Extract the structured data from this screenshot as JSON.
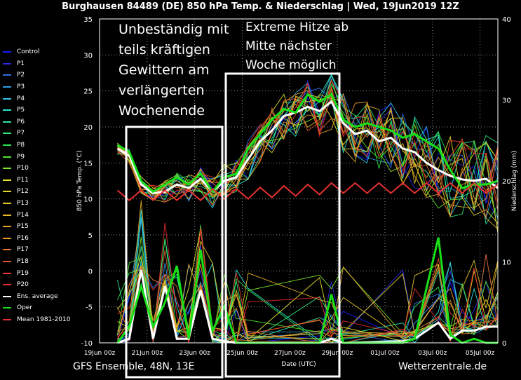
{
  "title": "Burghausen 84489 (DE)  850 hPa Temp. & Niederschlag | Wed, 19Jun2019 12Z",
  "footer_left": "GFS Ensemble, 48N, 13E",
  "footer_right": "Wetterzentrale.de",
  "annotations": {
    "left_lines": [
      "Unbeständig mit",
      "teils kräftigen",
      "Gewittern am",
      "verlängerten",
      "Wochenende"
    ],
    "right_lines": [
      "Extreme Hitze ab",
      "Mitte nächster",
      "Woche möglich"
    ]
  },
  "legend": [
    {
      "label": "Control",
      "color": "#1a1aff"
    },
    {
      "label": "P1",
      "color": "#2a2ae6"
    },
    {
      "label": "P2",
      "color": "#2a6ee6"
    },
    {
      "label": "P3",
      "color": "#2a9ee6"
    },
    {
      "label": "P4",
      "color": "#2ac6e6"
    },
    {
      "label": "P5",
      "color": "#2ae6d6"
    },
    {
      "label": "P6",
      "color": "#2ae6a6"
    },
    {
      "label": "P7",
      "color": "#2ae67e"
    },
    {
      "label": "P8",
      "color": "#2ae64e"
    },
    {
      "label": "P9",
      "color": "#4ee62a"
    },
    {
      "label": "P10",
      "color": "#7ee62a"
    },
    {
      "label": "P11",
      "color": "#e6e62a"
    },
    {
      "label": "P12",
      "color": "#e6d62a"
    },
    {
      "label": "P13",
      "color": "#e6c62a"
    },
    {
      "label": "P14",
      "color": "#e6b62a"
    },
    {
      "label": "P15",
      "color": "#e6a62a"
    },
    {
      "label": "P16",
      "color": "#e6962a"
    },
    {
      "label": "P17",
      "color": "#e6762a"
    },
    {
      "label": "P18",
      "color": "#e6562a"
    },
    {
      "label": "P19",
      "color": "#e63a2a"
    },
    {
      "label": "P20",
      "color": "#e62a2a"
    },
    {
      "label": "Ens. average",
      "color": "#ffffff"
    },
    {
      "label": "Oper",
      "color": "#18e018"
    },
    {
      "label": "Mean 1981-2010",
      "color": "#e83030"
    }
  ],
  "chart_data": {
    "type": "line",
    "title": "Burghausen 84489 (DE)  850 hPa Temp. & Niederschlag | Wed, 19Jun2019 12Z",
    "xlabel": "Date (UTC)",
    "ylabel": "850 hPa Temp. (°C)",
    "ylabel_right": "Niederschlag (mm)",
    "x_ticks": [
      "19Jun 00z",
      "21Jun 00z",
      "23Jun 00z",
      "25Jun 00z",
      "27Jun 00z",
      "29Jun 00z",
      "01Jul 00z",
      "03Jul 00z",
      "05Jul 00z"
    ],
    "x_tick_days": [
      0,
      2,
      4,
      6,
      8,
      10,
      12,
      14,
      16
    ],
    "xlim_days": [
      0,
      16.75
    ],
    "ylim": [
      -10,
      35
    ],
    "y_ticks": [
      -10,
      -5,
      0,
      5,
      10,
      15,
      20,
      25,
      30,
      35
    ],
    "ylim_right": [
      0,
      40
    ],
    "y_ticks_right": [
      0,
      10,
      20,
      30,
      40
    ],
    "grid": true,
    "temperature_series": [
      {
        "name": "Ens. average",
        "color": "#ffffff",
        "x": [
          0.75,
          1.25,
          1.75,
          2.25,
          2.75,
          3.25,
          3.75,
          4.25,
          4.75,
          5.25,
          5.75,
          6.25,
          6.75,
          7.25,
          7.75,
          8.25,
          8.75,
          9.25,
          9.75,
          10.25,
          10.75,
          11.25,
          11.75,
          12.25,
          12.75,
          13.25,
          13.75,
          14.25,
          14.75,
          15.25,
          15.75,
          16.25,
          16.75
        ],
        "y": [
          17,
          16,
          12,
          10.8,
          11,
          12,
          11.5,
          12.8,
          11,
          12.5,
          13,
          15.5,
          18,
          19.5,
          21.5,
          22,
          22.8,
          22.2,
          23.5,
          20.5,
          19,
          19.5,
          18,
          18.5,
          17,
          16.5,
          15,
          14,
          13.2,
          12.7,
          12.5,
          12.8,
          11.5
        ]
      },
      {
        "name": "Oper",
        "color": "#18e018",
        "x": [
          0.75,
          1.25,
          1.75,
          2.25,
          2.75,
          3.25,
          3.75,
          4.25,
          4.75,
          5.25,
          5.75,
          6.25,
          6.75,
          7.25,
          7.75,
          8.25,
          8.75,
          9.25,
          9.75,
          10.25,
          10.75,
          11.25,
          11.75,
          12.25,
          12.75,
          13.25,
          13.75,
          14.25,
          14.75,
          15.25,
          15.75,
          16.25,
          16.75
        ],
        "y": [
          17.5,
          16.5,
          12.5,
          11,
          12,
          13,
          12,
          13.5,
          11,
          13,
          13.5,
          17,
          19,
          21,
          22.5,
          22,
          24.5,
          23.5,
          24.5,
          21,
          20,
          20.5,
          20,
          19.5,
          18.5,
          19,
          18,
          17,
          14,
          11.5,
          12,
          12,
          12.5
        ]
      },
      {
        "name": "Mean 1981-2010",
        "color": "#e83030",
        "x": [
          0.75,
          1.25,
          1.75,
          2.25,
          2.75,
          3.25,
          3.75,
          4.25,
          4.75,
          5.25,
          5.75,
          6.25,
          6.75,
          7.25,
          7.75,
          8.25,
          8.75,
          9.25,
          9.75,
          10.25,
          10.75,
          11.25,
          11.75,
          12.25,
          12.75,
          13.25,
          13.75,
          14.25,
          14.75,
          15.25,
          15.75,
          16.25,
          16.75
        ],
        "y": [
          11.2,
          9.8,
          11.2,
          9.8,
          11.2,
          9.8,
          11.2,
          9.8,
          11.4,
          10,
          11.4,
          10,
          11.6,
          10.2,
          11.8,
          10.4,
          12,
          10.6,
          12.2,
          10.8,
          12.2,
          10.8,
          12.2,
          10.8,
          12.2,
          10.8,
          12.2,
          10.8,
          12.2,
          10.8,
          12.2,
          10.8,
          12
        ]
      }
    ],
    "precip_series": [
      {
        "name": "Ens. average",
        "color": "#ffffff",
        "x": [
          0.75,
          1.25,
          1.75,
          2.25,
          2.75,
          3.25,
          3.75,
          4.25,
          4.75,
          5.25,
          5.75,
          6.25,
          9.25,
          9.75,
          10.25,
          12.75,
          13.25,
          14.25,
          14.75,
          15.25,
          15.75,
          16.25,
          16.75
        ],
        "y": [
          0,
          0.5,
          9,
          0.5,
          7,
          0.5,
          0.5,
          6.5,
          0.5,
          0.2,
          0,
          0,
          0,
          0.5,
          0,
          0.2,
          0.5,
          2.5,
          0.5,
          1.5,
          1.5,
          2,
          2
        ]
      },
      {
        "name": "Oper",
        "color": "#18e018",
        "x": [
          0.75,
          1.25,
          1.75,
          2.25,
          2.75,
          3.25,
          3.75,
          4.25,
          4.75,
          5.25,
          5.75,
          6.25,
          9.25,
          9.75,
          10.25,
          12.75,
          13.25,
          14.25,
          14.75,
          15.25,
          15.75,
          16.25,
          16.75
        ],
        "y": [
          0,
          2,
          7,
          2,
          5,
          9.5,
          0.5,
          11.5,
          1.5,
          4.5,
          0,
          0,
          0,
          6,
          0,
          0,
          0.5,
          13,
          1,
          0,
          0.5,
          0,
          0
        ]
      }
    ]
  }
}
